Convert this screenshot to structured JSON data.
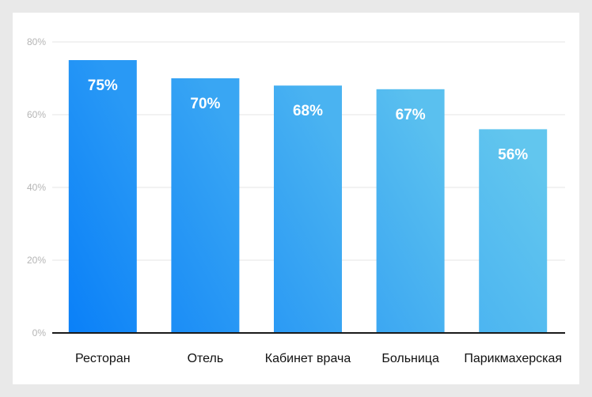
{
  "chart_data": {
    "type": "bar",
    "categories": [
      "Ресторан",
      "Отель",
      "Кабинет врача",
      "Больница",
      "Парикмахерская"
    ],
    "values": [
      75,
      70,
      68,
      67,
      56
    ],
    "data_labels": [
      "75%",
      "70%",
      "68%",
      "67%",
      "56%"
    ],
    "y_ticks": [
      0,
      20,
      40,
      60,
      80
    ],
    "y_tick_labels": [
      "0%",
      "20%",
      "40%",
      "60%",
      "80%"
    ],
    "ylim": [
      0,
      80
    ],
    "grid": true,
    "colors": {
      "bar_start": "#0a80f8",
      "bar_end": "#62c6ee",
      "grid": "#e4e4e4",
      "axis": "#1a1a1a"
    }
  }
}
